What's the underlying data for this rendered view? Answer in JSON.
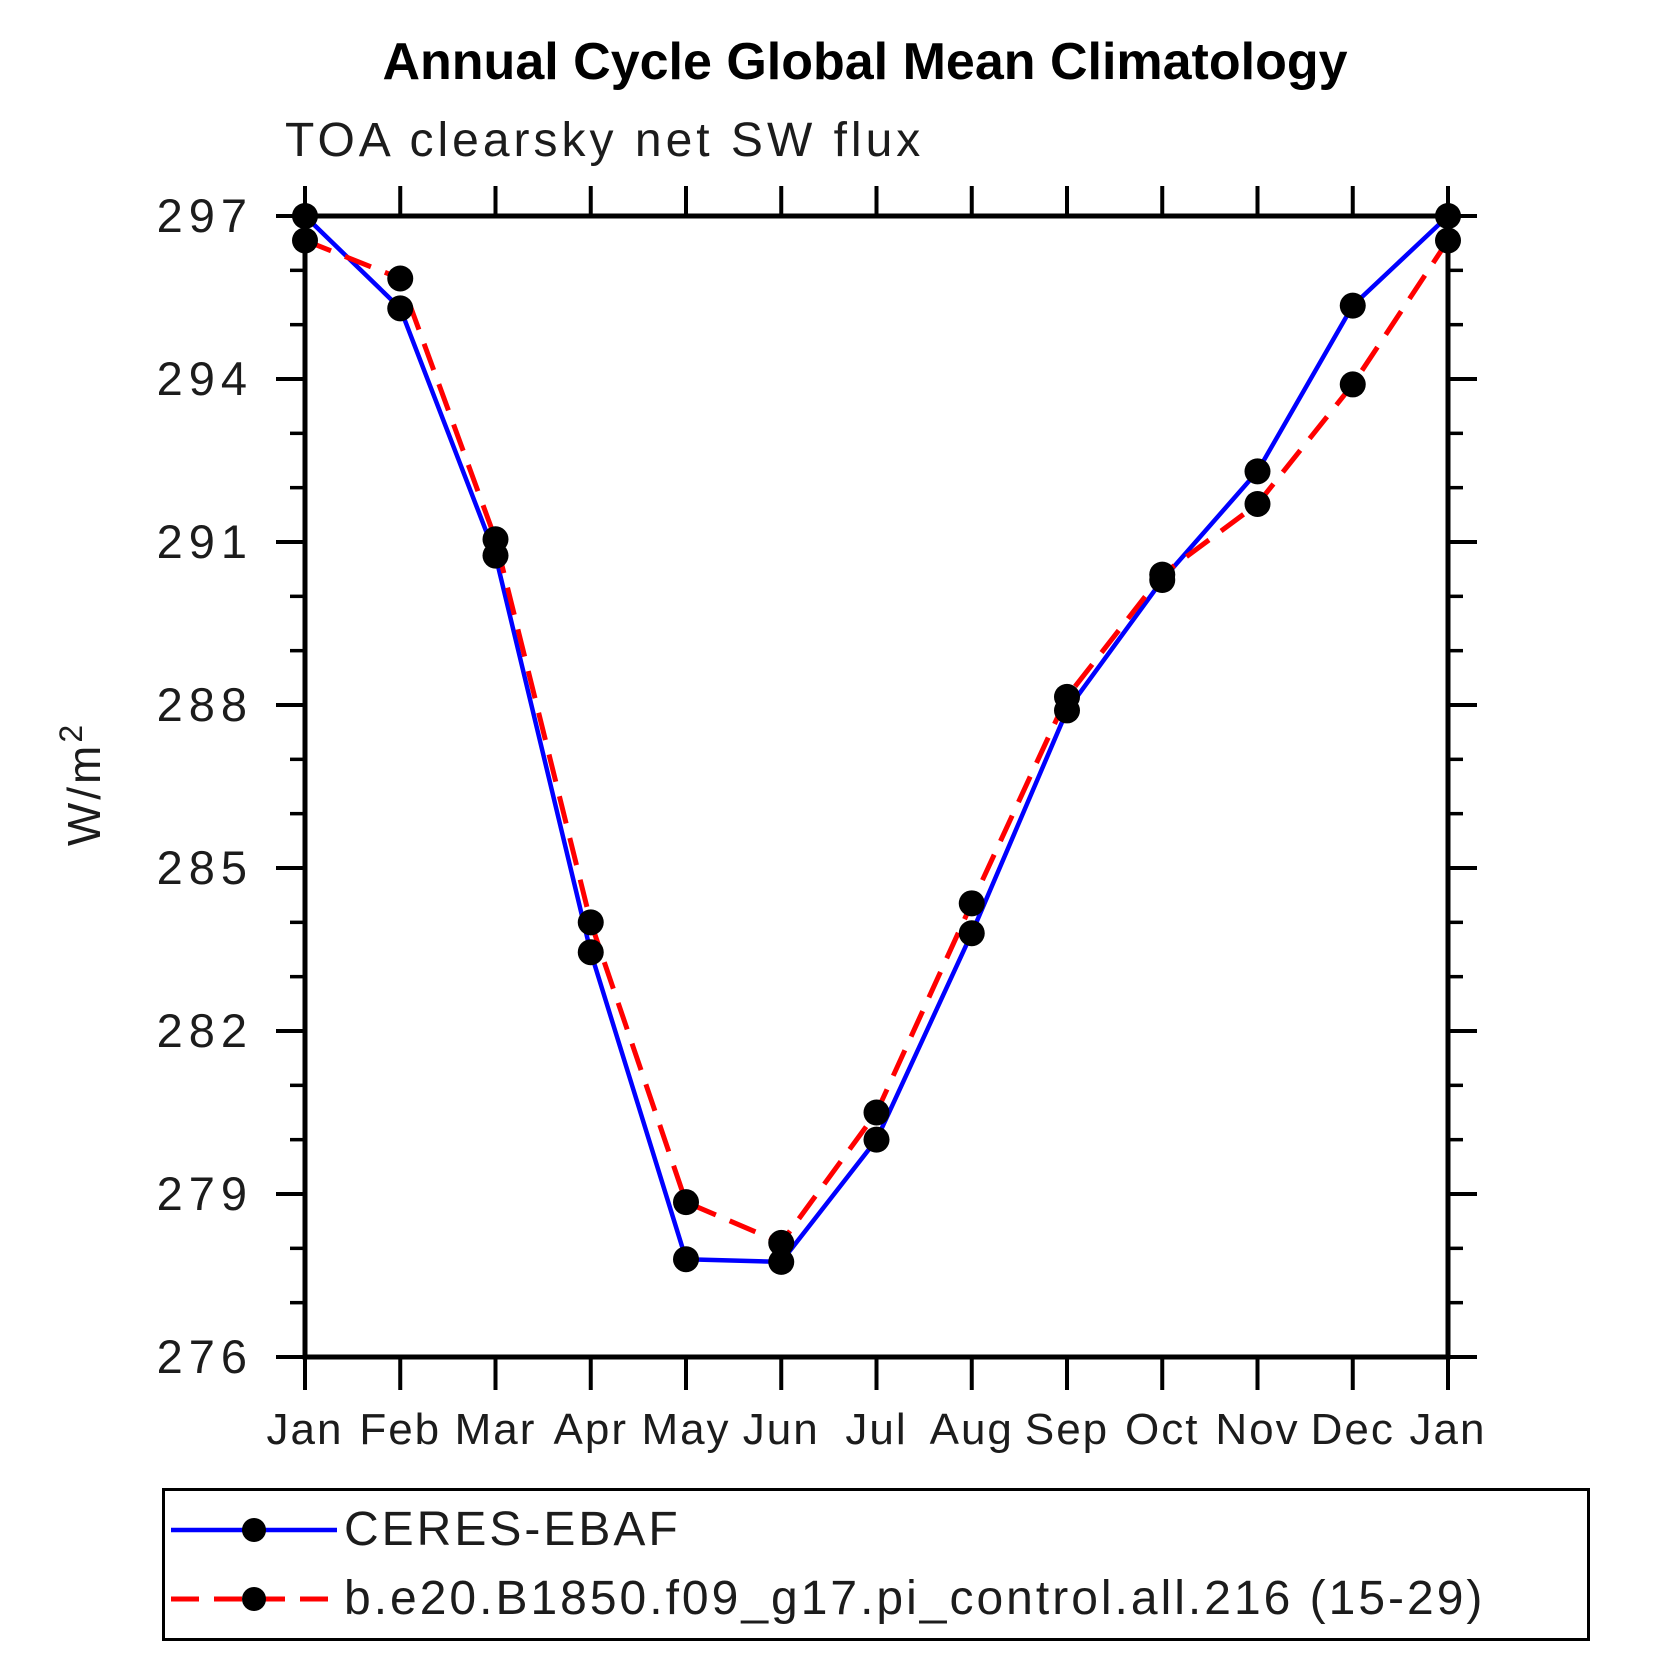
{
  "chart_data": {
    "type": "line",
    "title": "Annual Cycle Global Mean Climatology",
    "subtitle": "TOA clearsky net SW flux",
    "ylabel": "W/m²",
    "x_categories": [
      "Jan",
      "Feb",
      "Mar",
      "Apr",
      "May",
      "Jun",
      "Jul",
      "Aug",
      "Sep",
      "Oct",
      "Nov",
      "Dec",
      "Jan"
    ],
    "ylim": [
      276,
      297
    ],
    "yticks_major": [
      276,
      279,
      282,
      285,
      288,
      291,
      294,
      297
    ],
    "ytick_minor_step": 1,
    "grid": false,
    "legend_position": "bottom-left-box",
    "axis_color": "#000000",
    "marker_color": "#000000",
    "series": [
      {
        "name": "CERES-EBAF",
        "color": "#0000ff",
        "style": "solid",
        "marker": "circle",
        "values": [
          297.0,
          295.3,
          290.75,
          283.45,
          277.8,
          277.75,
          280.0,
          283.8,
          287.9,
          290.3,
          292.3,
          295.35,
          297.0
        ]
      },
      {
        "name": "b.e20.B1850.f09_g17.pi_control.all.216 (15-29)",
        "color": "#ff0000",
        "style": "dashed",
        "marker": "circle",
        "values": [
          296.55,
          295.85,
          291.05,
          284.0,
          278.85,
          278.1,
          280.5,
          284.35,
          288.15,
          290.4,
          291.7,
          293.9,
          296.55
        ]
      }
    ]
  }
}
